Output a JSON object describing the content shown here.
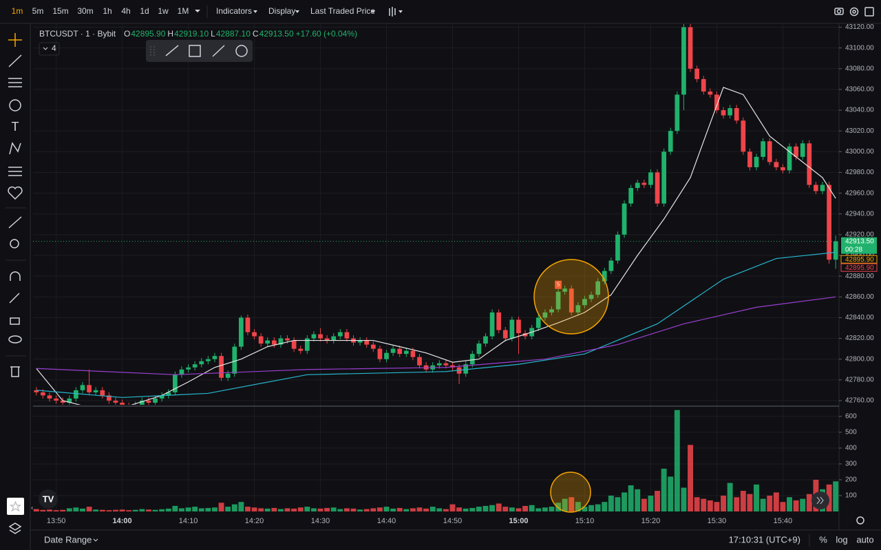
{
  "toolbar": {
    "intervals": [
      "1m",
      "5m",
      "15m",
      "30m",
      "1h",
      "4h",
      "1d",
      "1w",
      "1M"
    ],
    "menus": [
      "Indicators",
      "Display",
      "Last Traded Price"
    ]
  },
  "legend": {
    "symbol": "BTCUSDT · 1 · Bybit",
    "fields": [
      {
        "key": "O",
        "value": "42895.90"
      },
      {
        "key": "H",
        "value": "42919.10"
      },
      {
        "key": "L",
        "value": "42887.10"
      },
      {
        "key": "C",
        "value": "42913.50"
      }
    ],
    "change": "+17.60 (+0.04%)",
    "collapsed_count": 4
  },
  "bottom": {
    "date_range": "Date Range",
    "clock": "17:10:31 (UTC+9)",
    "scale_buttons": [
      "%",
      "log",
      "auto"
    ]
  },
  "chart_data": {
    "type": "candlestick",
    "up_color": "#20b26c",
    "down_color": "#ef454a",
    "xlim": [
      826.5,
      948.5
    ],
    "xticks": [
      {
        "value": 830,
        "label": "13:50"
      },
      {
        "value": 840,
        "label": "14:00"
      },
      {
        "value": 850,
        "label": "14:10"
      },
      {
        "value": 860,
        "label": "14:20"
      },
      {
        "value": 870,
        "label": "14:30"
      },
      {
        "value": 880,
        "label": "14:40"
      },
      {
        "value": 890,
        "label": "14:50"
      },
      {
        "value": 900,
        "label": "15:00"
      },
      {
        "value": 910,
        "label": "15:10"
      },
      {
        "value": 920,
        "label": "15:20"
      },
      {
        "value": 930,
        "label": "15:30"
      },
      {
        "value": 940,
        "label": "15:40"
      }
    ],
    "ylim": [
      42756,
      43123
    ],
    "yticks": [
      {
        "value": 42760,
        "label": "42760.00"
      },
      {
        "value": 42780,
        "label": "42780.00"
      },
      {
        "value": 42800,
        "label": "42800.00"
      },
      {
        "value": 42820,
        "label": "42820.00"
      },
      {
        "value": 42840,
        "label": "42840.00"
      },
      {
        "value": 42860,
        "label": "42860.00"
      },
      {
        "value": 42880,
        "label": "42880.00"
      },
      {
        "value": 42900,
        "label": "42900.00"
      },
      {
        "value": 42920,
        "label": "42920.00"
      },
      {
        "value": 42940,
        "label": "42940.00"
      },
      {
        "value": 42960,
        "label": "42960.00"
      },
      {
        "value": 42980,
        "label": "42980.00"
      },
      {
        "value": 43000,
        "label": "43000.00"
      },
      {
        "value": 43020,
        "label": "43020.00"
      },
      {
        "value": 43040,
        "label": "43040.00"
      },
      {
        "value": 43060,
        "label": "43060.00"
      },
      {
        "value": 43080,
        "label": "43080.00"
      },
      {
        "value": 43100,
        "label": "43100.00"
      },
      {
        "value": 43120,
        "label": "43120.00"
      }
    ],
    "grid": true,
    "x": [
      827,
      828,
      829,
      830,
      831,
      832,
      833,
      834,
      835,
      836,
      837,
      838,
      839,
      840,
      841,
      842,
      843,
      844,
      845,
      846,
      847,
      848,
      849,
      850,
      851,
      852,
      853,
      854,
      855,
      856,
      857,
      858,
      859,
      860,
      861,
      862,
      863,
      864,
      865,
      866,
      867,
      868,
      869,
      870,
      871,
      872,
      873,
      874,
      875,
      876,
      877,
      878,
      879,
      880,
      881,
      882,
      883,
      884,
      885,
      886,
      887,
      888,
      889,
      890,
      891,
      892,
      893,
      894,
      895,
      896,
      897,
      898,
      899,
      900,
      901,
      902,
      903,
      904,
      905,
      906,
      907,
      908,
      909,
      910,
      911,
      912,
      913,
      914,
      915,
      916,
      917,
      918,
      919,
      920,
      921,
      922,
      923,
      924,
      925,
      926,
      927,
      928,
      929,
      930,
      931,
      932,
      933,
      934,
      935,
      936,
      937,
      938,
      939,
      940,
      941,
      942,
      943,
      944,
      945,
      946,
      947,
      948
    ],
    "open": [
      42770,
      42768,
      42765,
      42762,
      42760,
      42758,
      42762,
      42770,
      42775,
      42768,
      42770,
      42765,
      42760,
      42758,
      42755,
      42752,
      42756,
      42760,
      42758,
      42762,
      42765,
      42768,
      42785,
      42790,
      42792,
      42795,
      42798,
      42800,
      42803,
      42782,
      42786,
      42812,
      42840,
      42826,
      42822,
      42815,
      42818,
      42814,
      42820,
      42818,
      42810,
      42808,
      42820,
      42824,
      42820,
      42818,
      42822,
      42826,
      42820,
      42816,
      42818,
      42814,
      42810,
      42800,
      42806,
      42810,
      42805,
      42808,
      42802,
      42794,
      42790,
      42794,
      42796,
      42794,
      42792,
      42786,
      42795,
      42805,
      42815,
      42822,
      42845,
      42828,
      42820,
      42838,
      42825,
      42822,
      42830,
      42840,
      42845,
      42848,
      42865,
      42868,
      42845,
      42852,
      42858,
      42862,
      42875,
      42885,
      42895,
      42920,
      42950,
      42965,
      42970,
      42968,
      42980,
      42950,
      43000,
      43020,
      43055,
      43120,
      43080,
      43070,
      43058,
      43055,
      43040,
      43035,
      43042,
      43030,
      43000,
      42985,
      42995,
      43010,
      42990,
      42985,
      42982,
      43005,
      42995,
      43008,
      42968,
      42962,
      42968,
      42895.9
    ],
    "high": [
      42773,
      42771,
      42768,
      42765,
      42763,
      42765,
      42773,
      42778,
      42790,
      42773,
      42773,
      42768,
      42763,
      42761,
      42758,
      42759,
      42763,
      42763,
      42765,
      42768,
      42771,
      42788,
      42793,
      42795,
      42798,
      42801,
      42803,
      42806,
      42806,
      42789,
      42815,
      42842,
      42843,
      42829,
      42825,
      42821,
      42821,
      42823,
      42823,
      42821,
      42813,
      42823,
      42827,
      42830,
      42823,
      42825,
      42829,
      42829,
      42823,
      42821,
      42821,
      42817,
      42813,
      42809,
      42813,
      42813,
      42811,
      42811,
      42805,
      42797,
      42797,
      42799,
      42799,
      42797,
      42795,
      42798,
      42808,
      42818,
      42825,
      42848,
      42848,
      42831,
      42841,
      42841,
      42828,
      42833,
      42843,
      42848,
      42851,
      42868,
      42871,
      42871,
      42855,
      42861,
      42865,
      42878,
      42888,
      42898,
      42923,
      42953,
      42968,
      42973,
      42973,
      42983,
      42983,
      43003,
      43023,
      43058,
      43123,
      43123,
      43083,
      43073,
      43061,
      43058,
      43043,
      43045,
      43045,
      43033,
      43003,
      42998,
      43013,
      43013,
      42993,
      42988,
      43008,
      43008,
      43011,
      43011,
      42971,
      42971,
      42971,
      42919.1
    ],
    "low": [
      42765,
      42762,
      42759,
      42757,
      42755,
      42755,
      42759,
      42767,
      42765,
      42765,
      42762,
      42757,
      42755,
      42752,
      42749,
      42749,
      42753,
      42755,
      42755,
      42759,
      42762,
      42765,
      42782,
      42787,
      42789,
      42792,
      42795,
      42797,
      42779,
      42779,
      42783,
      42809,
      42823,
      42819,
      42812,
      42812,
      42811,
      42811,
      42815,
      42807,
      42805,
      42805,
      42817,
      42817,
      42815,
      42815,
      42819,
      42817,
      42813,
      42813,
      42811,
      42807,
      42797,
      42797,
      42803,
      42802,
      42802,
      42799,
      42791,
      42787,
      42787,
      42791,
      42791,
      42789,
      42776,
      42783,
      42792,
      42802,
      42812,
      42819,
      42825,
      42817,
      42817,
      42805,
      42819,
      42819,
      42827,
      42837,
      42842,
      42845,
      42862,
      42842,
      42842,
      42849,
      42855,
      42859,
      42872,
      42882,
      42892,
      42917,
      42947,
      42962,
      42965,
      42965,
      42947,
      42947,
      42997,
      43017,
      43040,
      43077,
      43067,
      43055,
      43052,
      43037,
      43032,
      43032,
      43027,
      42997,
      42982,
      42982,
      42992,
      42987,
      42982,
      42979,
      42979,
      42992,
      42992,
      42965,
      42959,
      42959,
      42892,
      42887.1
    ],
    "close": [
      42768,
      42765,
      42762,
      42760,
      42758,
      42762,
      42770,
      42775,
      42768,
      42770,
      42765,
      42760,
      42758,
      42755,
      42752,
      42756,
      42760,
      42758,
      42762,
      42765,
      42768,
      42785,
      42790,
      42792,
      42795,
      42798,
      42800,
      42803,
      42782,
      42786,
      42812,
      42840,
      42826,
      42822,
      42815,
      42818,
      42814,
      42820,
      42818,
      42810,
      42808,
      42820,
      42824,
      42820,
      42818,
      42822,
      42826,
      42820,
      42816,
      42818,
      42814,
      42810,
      42800,
      42806,
      42810,
      42805,
      42808,
      42802,
      42794,
      42790,
      42794,
      42796,
      42794,
      42792,
      42786,
      42795,
      42805,
      42815,
      42822,
      42845,
      42828,
      42820,
      42838,
      42825,
      42822,
      42830,
      42840,
      42845,
      42848,
      42865,
      42868,
      42845,
      42852,
      42858,
      42862,
      42875,
      42885,
      42895,
      42920,
      42950,
      42965,
      42970,
      42968,
      42980,
      42950,
      43000,
      43020,
      43055,
      43120,
      43080,
      43070,
      43058,
      43055,
      43040,
      43035,
      43042,
      43030,
      43000,
      42985,
      42995,
      43010,
      42990,
      42985,
      42982,
      43005,
      42995,
      43008,
      42968,
      42962,
      42968,
      42895.9,
      42913.5
    ],
    "lines": [
      {
        "color": "#e8e8e8",
        "x": [
          827,
          831,
          836,
          841,
          846,
          850,
          854,
          858,
          862,
          866,
          870,
          874,
          878,
          882,
          886,
          890,
          894,
          898,
          902,
          906,
          910,
          914,
          918,
          922,
          926,
          928,
          931,
          934,
          938,
          942,
          946,
          948
        ],
        "values": [
          42791,
          42760,
          42752,
          42755,
          42765,
          42778,
          42792,
          42800,
          42812,
          42818,
          42818,
          42818,
          42818,
          42812,
          42806,
          42797,
          42800,
          42818,
          42826,
          42835,
          42845,
          42862,
          42900,
          42935,
          42975,
          43010,
          43062,
          43055,
          43015,
          42995,
          42975,
          42955
        ]
      },
      {
        "color": "#26b7cf",
        "x": [
          827,
          840,
          853,
          868,
          889,
          900,
          910,
          921,
          931,
          939,
          948
        ],
        "values": [
          42770,
          42763,
          42767,
          42785,
          42788,
          42795,
          42805,
          42834,
          42877,
          42897,
          42903
        ]
      },
      {
        "color": "#9c3fd3",
        "x": [
          827,
          848,
          868,
          889,
          904,
          915,
          925,
          936,
          948
        ],
        "values": [
          42791,
          42785,
          42790,
          42792,
          42800,
          42814,
          42834,
          42850,
          42860
        ]
      }
    ],
    "annotations": [
      {
        "text": "S",
        "x": 906,
        "y": 42871
      }
    ],
    "price_labels": [
      {
        "value": 42913.5,
        "label": "42913.50",
        "countdown": "00:28",
        "color": "#20b26c"
      },
      {
        "value": 42895.9,
        "label": "42895.90",
        "color": "#f7a600"
      },
      {
        "value": 42895.9,
        "label": "42895.90",
        "color": "#ef454a"
      }
    ],
    "volume": [
      15,
      10,
      12,
      8,
      10,
      20,
      25,
      18,
      30,
      12,
      10,
      8,
      10,
      12,
      8,
      10,
      15,
      12,
      10,
      14,
      18,
      35,
      20,
      25,
      30,
      20,
      22,
      25,
      55,
      30,
      45,
      60,
      30,
      25,
      20,
      18,
      22,
      15,
      20,
      18,
      25,
      30,
      20,
      18,
      22,
      25,
      15,
      20,
      18,
      12,
      15,
      20,
      25,
      30,
      18,
      22,
      15,
      20,
      25,
      18,
      30,
      20,
      15,
      45,
      25,
      18,
      22,
      30,
      35,
      40,
      50,
      30,
      25,
      20,
      35,
      40,
      20,
      25,
      30,
      55,
      80,
      90,
      60,
      30,
      40,
      45,
      60,
      100,
      90,
      120,
      165,
      140,
      80,
      100,
      130,
      270,
      220,
      640,
      150,
      420,
      90,
      80,
      70,
      60,
      100,
      180,
      90,
      130,
      110,
      170,
      80,
      100,
      120,
      60,
      90,
      70,
      80,
      110,
      200,
      140,
      170,
      190
    ],
    "volume_ylim": [
      0,
      643
    ],
    "volume_yticks": [
      100,
      200,
      300,
      400,
      500,
      600
    ]
  }
}
